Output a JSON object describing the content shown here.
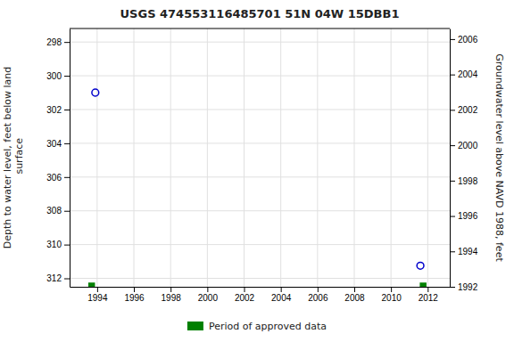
{
  "chart_data": {
    "type": "scatter",
    "title": "USGS 474553116485701 51N 04W 15DBB1",
    "ylabel": "Depth to water level, feet below land\n surface",
    "y2label": "Groundwater level above NAVD 1988, feet",
    "xlim": [
      1992.5,
      2013.2
    ],
    "xticks": [
      1994,
      1996,
      1998,
      2000,
      2002,
      2004,
      2006,
      2008,
      2010,
      2012
    ],
    "ylim": [
      312.5,
      297.2
    ],
    "yticks": [
      298,
      300,
      302,
      304,
      306,
      308,
      310,
      312
    ],
    "y2lim": [
      1992.0,
      2006.6
    ],
    "y2ticks": [
      1992,
      1994,
      1996,
      1998,
      2000,
      2002,
      2004,
      2006
    ],
    "grid": true,
    "legend": "bottom",
    "series": [
      {
        "x": [
          1993.9,
          2011.6
        ],
        "values": [
          301.0,
          311.25
        ],
        "color": "#0000cc",
        "marker": "open-circle"
      },
      {
        "name": "Period of approved data",
        "x": [
          1993.7,
          2011.75
        ],
        "values": [
          312.45,
          312.45
        ],
        "color": "#008000",
        "marker": "square"
      }
    ]
  }
}
